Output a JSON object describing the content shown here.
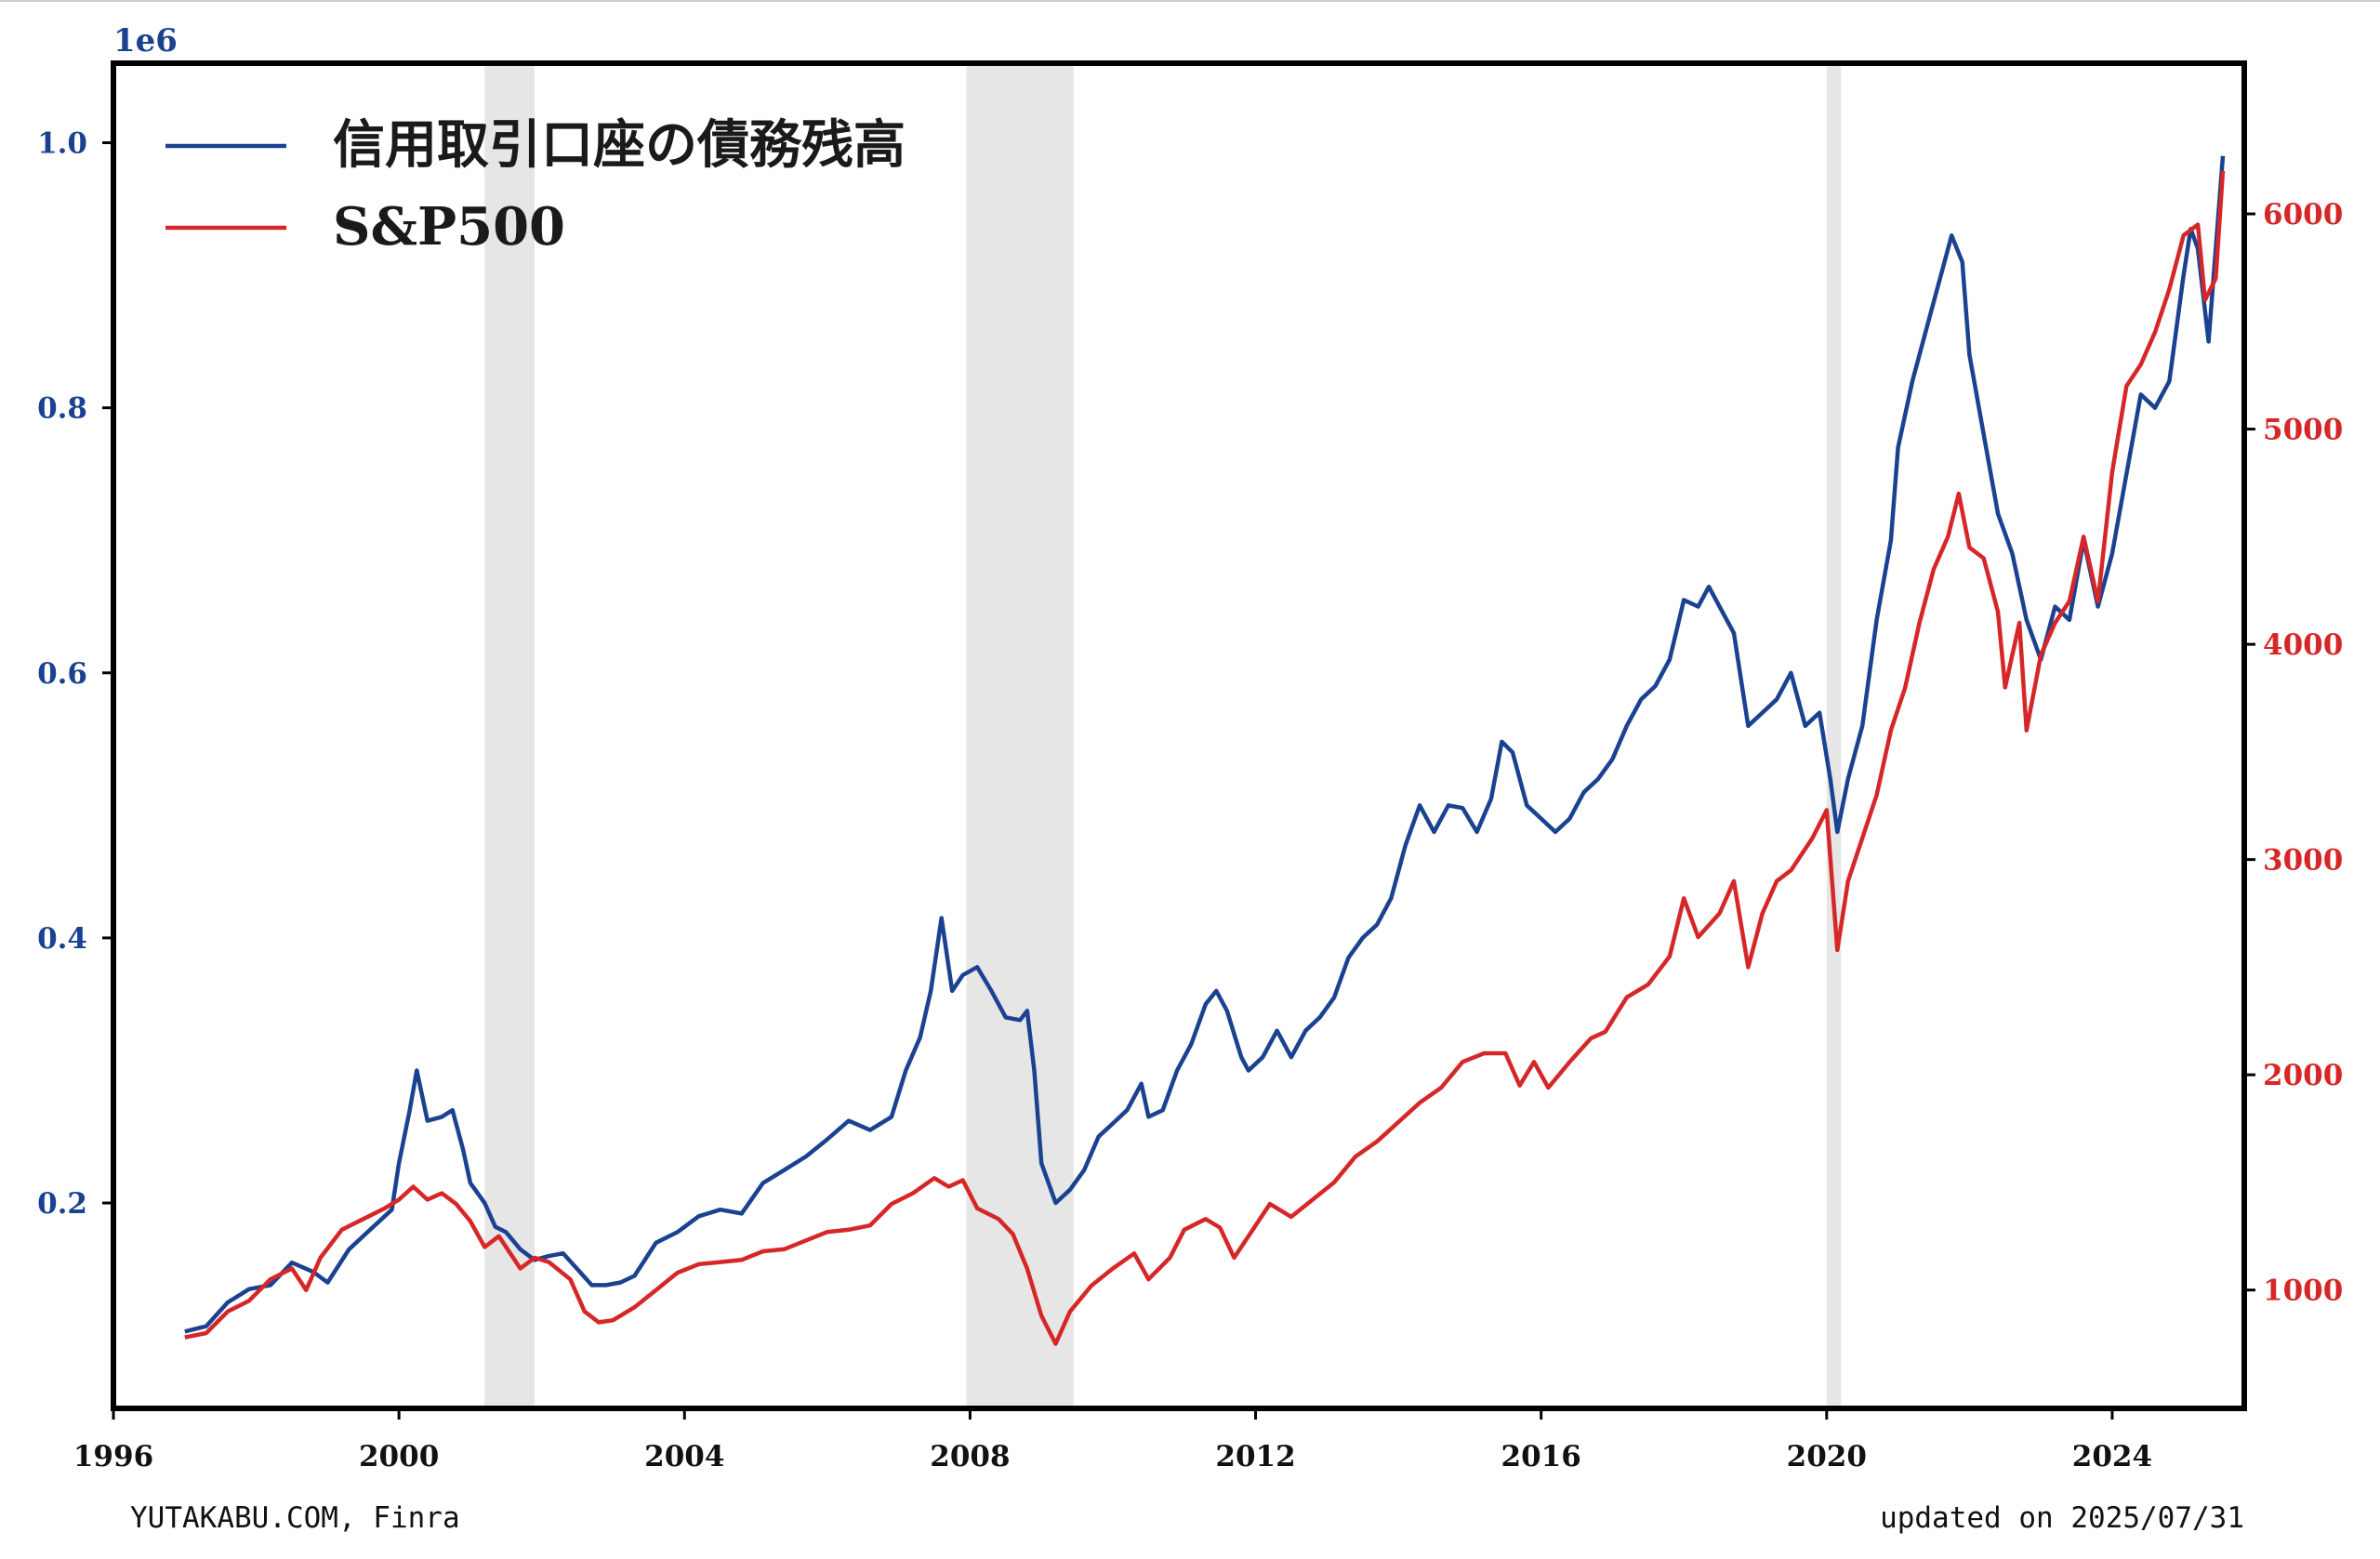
{
  "chart_data": {
    "type": "line",
    "left_axis": {
      "offset_text": "1e6",
      "ylim": [
        0.045,
        1.06
      ],
      "ticks": [
        0.2,
        0.4,
        0.6,
        0.8,
        1.0
      ],
      "tick_labels": [
        "0.2",
        "0.4",
        "0.6",
        "0.8",
        "1.0"
      ],
      "color": "#1a4291"
    },
    "right_axis": {
      "ylim": [
        450,
        6700
      ],
      "ticks": [
        1000,
        2000,
        3000,
        4000,
        5000,
        6000
      ],
      "tick_labels": [
        "1000",
        "2000",
        "3000",
        "4000",
        "5000",
        "6000"
      ],
      "color": "#d62728"
    },
    "x_axis": {
      "xlim": [
        1996.0,
        2025.85
      ],
      "ticks": [
        1996,
        2000,
        2004,
        2008,
        2012,
        2016,
        2020,
        2024
      ],
      "tick_labels": [
        "1996",
        "2000",
        "2004",
        "2008",
        "2012",
        "2016",
        "2020",
        "2024"
      ]
    },
    "recession_bands": [
      [
        2001.2,
        2001.9
      ],
      [
        2007.95,
        2009.45
      ],
      [
        2020.0,
        2020.2
      ]
    ],
    "series": [
      {
        "name": "信用取引口座の債務残高",
        "axis": "left",
        "color": "#1a4291",
        "points": [
          [
            1997.0,
            0.103
          ],
          [
            1997.3,
            0.107
          ],
          [
            1997.6,
            0.125
          ],
          [
            1997.9,
            0.135
          ],
          [
            1998.2,
            0.138
          ],
          [
            1998.5,
            0.155
          ],
          [
            1998.8,
            0.148
          ],
          [
            1999.0,
            0.14
          ],
          [
            1999.3,
            0.165
          ],
          [
            1999.6,
            0.18
          ],
          [
            1999.9,
            0.195
          ],
          [
            2000.0,
            0.23
          ],
          [
            2000.15,
            0.27
          ],
          [
            2000.25,
            0.3
          ],
          [
            2000.4,
            0.262
          ],
          [
            2000.6,
            0.265
          ],
          [
            2000.75,
            0.27
          ],
          [
            2000.9,
            0.24
          ],
          [
            2001.0,
            0.215
          ],
          [
            2001.2,
            0.2
          ],
          [
            2001.35,
            0.182
          ],
          [
            2001.5,
            0.178
          ],
          [
            2001.7,
            0.165
          ],
          [
            2001.9,
            0.157
          ],
          [
            2002.1,
            0.16
          ],
          [
            2002.3,
            0.162
          ],
          [
            2002.5,
            0.15
          ],
          [
            2002.7,
            0.138
          ],
          [
            2002.9,
            0.138
          ],
          [
            2003.1,
            0.14
          ],
          [
            2003.3,
            0.145
          ],
          [
            2003.6,
            0.17
          ],
          [
            2003.9,
            0.178
          ],
          [
            2004.2,
            0.19
          ],
          [
            2004.5,
            0.195
          ],
          [
            2004.8,
            0.192
          ],
          [
            2005.1,
            0.215
          ],
          [
            2005.4,
            0.225
          ],
          [
            2005.7,
            0.235
          ],
          [
            2006.0,
            0.248
          ],
          [
            2006.3,
            0.262
          ],
          [
            2006.6,
            0.255
          ],
          [
            2006.9,
            0.265
          ],
          [
            2007.1,
            0.3
          ],
          [
            2007.3,
            0.325
          ],
          [
            2007.45,
            0.36
          ],
          [
            2007.6,
            0.415
          ],
          [
            2007.75,
            0.36
          ],
          [
            2007.9,
            0.372
          ],
          [
            2008.1,
            0.378
          ],
          [
            2008.3,
            0.36
          ],
          [
            2008.5,
            0.34
          ],
          [
            2008.7,
            0.338
          ],
          [
            2008.8,
            0.345
          ],
          [
            2008.9,
            0.3
          ],
          [
            2009.0,
            0.23
          ],
          [
            2009.2,
            0.2
          ],
          [
            2009.4,
            0.21
          ],
          [
            2009.6,
            0.225
          ],
          [
            2009.8,
            0.25
          ],
          [
            2010.0,
            0.26
          ],
          [
            2010.2,
            0.27
          ],
          [
            2010.4,
            0.29
          ],
          [
            2010.5,
            0.265
          ],
          [
            2010.7,
            0.27
          ],
          [
            2010.9,
            0.3
          ],
          [
            2011.1,
            0.32
          ],
          [
            2011.3,
            0.35
          ],
          [
            2011.45,
            0.36
          ],
          [
            2011.6,
            0.345
          ],
          [
            2011.8,
            0.31
          ],
          [
            2011.9,
            0.3
          ],
          [
            2012.1,
            0.31
          ],
          [
            2012.3,
            0.33
          ],
          [
            2012.5,
            0.31
          ],
          [
            2012.7,
            0.33
          ],
          [
            2012.9,
            0.34
          ],
          [
            2013.1,
            0.355
          ],
          [
            2013.3,
            0.385
          ],
          [
            2013.5,
            0.4
          ],
          [
            2013.7,
            0.41
          ],
          [
            2013.9,
            0.43
          ],
          [
            2014.1,
            0.47
          ],
          [
            2014.3,
            0.5
          ],
          [
            2014.5,
            0.48
          ],
          [
            2014.7,
            0.5
          ],
          [
            2014.9,
            0.498
          ],
          [
            2015.1,
            0.48
          ],
          [
            2015.3,
            0.505
          ],
          [
            2015.45,
            0.548
          ],
          [
            2015.6,
            0.54
          ],
          [
            2015.8,
            0.5
          ],
          [
            2016.0,
            0.49
          ],
          [
            2016.2,
            0.48
          ],
          [
            2016.4,
            0.49
          ],
          [
            2016.6,
            0.51
          ],
          [
            2016.8,
            0.52
          ],
          [
            2017.0,
            0.535
          ],
          [
            2017.2,
            0.56
          ],
          [
            2017.4,
            0.58
          ],
          [
            2017.6,
            0.59
          ],
          [
            2017.8,
            0.61
          ],
          [
            2018.0,
            0.655
          ],
          [
            2018.2,
            0.65
          ],
          [
            2018.35,
            0.665
          ],
          [
            2018.5,
            0.65
          ],
          [
            2018.7,
            0.63
          ],
          [
            2018.9,
            0.56
          ],
          [
            2019.1,
            0.57
          ],
          [
            2019.3,
            0.58
          ],
          [
            2019.5,
            0.6
          ],
          [
            2019.7,
            0.56
          ],
          [
            2019.9,
            0.57
          ],
          [
            2020.05,
            0.52
          ],
          [
            2020.15,
            0.48
          ],
          [
            2020.3,
            0.52
          ],
          [
            2020.5,
            0.56
          ],
          [
            2020.7,
            0.64
          ],
          [
            2020.9,
            0.7
          ],
          [
            2021.0,
            0.77
          ],
          [
            2021.2,
            0.82
          ],
          [
            2021.4,
            0.86
          ],
          [
            2021.6,
            0.9
          ],
          [
            2021.75,
            0.93
          ],
          [
            2021.9,
            0.91
          ],
          [
            2022.0,
            0.84
          ],
          [
            2022.2,
            0.78
          ],
          [
            2022.4,
            0.72
          ],
          [
            2022.6,
            0.69
          ],
          [
            2022.8,
            0.64
          ],
          [
            2023.0,
            0.61
          ],
          [
            2023.2,
            0.65
          ],
          [
            2023.4,
            0.64
          ],
          [
            2023.6,
            0.7
          ],
          [
            2023.8,
            0.65
          ],
          [
            2024.0,
            0.69
          ],
          [
            2024.2,
            0.75
          ],
          [
            2024.4,
            0.81
          ],
          [
            2024.6,
            0.8
          ],
          [
            2024.8,
            0.82
          ],
          [
            2025.0,
            0.9
          ],
          [
            2025.1,
            0.935
          ],
          [
            2025.2,
            0.92
          ],
          [
            2025.35,
            0.85
          ],
          [
            2025.55,
            0.99
          ]
        ]
      },
      {
        "name": "S&P500",
        "axis": "right",
        "color": "#d62728",
        "points": [
          [
            1997.0,
            780
          ],
          [
            1997.3,
            800
          ],
          [
            1997.6,
            900
          ],
          [
            1997.9,
            950
          ],
          [
            1998.2,
            1050
          ],
          [
            1998.5,
            1100
          ],
          [
            1998.7,
            1000
          ],
          [
            1998.9,
            1150
          ],
          [
            1999.2,
            1280
          ],
          [
            1999.5,
            1330
          ],
          [
            1999.8,
            1380
          ],
          [
            2000.0,
            1420
          ],
          [
            2000.2,
            1480
          ],
          [
            2000.4,
            1420
          ],
          [
            2000.6,
            1450
          ],
          [
            2000.8,
            1400
          ],
          [
            2001.0,
            1320
          ],
          [
            2001.2,
            1200
          ],
          [
            2001.4,
            1250
          ],
          [
            2001.7,
            1100
          ],
          [
            2001.9,
            1150
          ],
          [
            2002.1,
            1130
          ],
          [
            2002.4,
            1050
          ],
          [
            2002.6,
            900
          ],
          [
            2002.8,
            850
          ],
          [
            2003.0,
            860
          ],
          [
            2003.3,
            920
          ],
          [
            2003.6,
            1000
          ],
          [
            2003.9,
            1080
          ],
          [
            2004.2,
            1120
          ],
          [
            2004.5,
            1130
          ],
          [
            2004.8,
            1140
          ],
          [
            2005.1,
            1180
          ],
          [
            2005.4,
            1190
          ],
          [
            2005.7,
            1230
          ],
          [
            2006.0,
            1270
          ],
          [
            2006.3,
            1280
          ],
          [
            2006.6,
            1300
          ],
          [
            2006.9,
            1400
          ],
          [
            2007.2,
            1450
          ],
          [
            2007.5,
            1520
          ],
          [
            2007.7,
            1480
          ],
          [
            2007.9,
            1510
          ],
          [
            2008.1,
            1380
          ],
          [
            2008.4,
            1330
          ],
          [
            2008.6,
            1260
          ],
          [
            2008.8,
            1100
          ],
          [
            2009.0,
            880
          ],
          [
            2009.2,
            750
          ],
          [
            2009.4,
            900
          ],
          [
            2009.7,
            1020
          ],
          [
            2010.0,
            1100
          ],
          [
            2010.3,
            1170
          ],
          [
            2010.5,
            1050
          ],
          [
            2010.8,
            1150
          ],
          [
            2011.0,
            1280
          ],
          [
            2011.3,
            1330
          ],
          [
            2011.5,
            1290
          ],
          [
            2011.7,
            1150
          ],
          [
            2011.9,
            1250
          ],
          [
            2012.2,
            1400
          ],
          [
            2012.5,
            1340
          ],
          [
            2012.8,
            1420
          ],
          [
            2013.1,
            1500
          ],
          [
            2013.4,
            1620
          ],
          [
            2013.7,
            1690
          ],
          [
            2014.0,
            1780
          ],
          [
            2014.3,
            1870
          ],
          [
            2014.6,
            1940
          ],
          [
            2014.9,
            2060
          ],
          [
            2015.2,
            2100
          ],
          [
            2015.5,
            2100
          ],
          [
            2015.7,
            1950
          ],
          [
            2015.9,
            2060
          ],
          [
            2016.1,
            1940
          ],
          [
            2016.4,
            2060
          ],
          [
            2016.7,
            2170
          ],
          [
            2016.9,
            2200
          ],
          [
            2017.2,
            2360
          ],
          [
            2017.5,
            2420
          ],
          [
            2017.8,
            2550
          ],
          [
            2018.0,
            2820
          ],
          [
            2018.2,
            2640
          ],
          [
            2018.5,
            2750
          ],
          [
            2018.7,
            2900
          ],
          [
            2018.9,
            2500
          ],
          [
            2019.1,
            2750
          ],
          [
            2019.3,
            2900
          ],
          [
            2019.5,
            2950
          ],
          [
            2019.8,
            3100
          ],
          [
            2020.0,
            3230
          ],
          [
            2020.15,
            2580
          ],
          [
            2020.3,
            2900
          ],
          [
            2020.5,
            3100
          ],
          [
            2020.7,
            3300
          ],
          [
            2020.9,
            3600
          ],
          [
            2021.1,
            3800
          ],
          [
            2021.3,
            4100
          ],
          [
            2021.5,
            4350
          ],
          [
            2021.7,
            4500
          ],
          [
            2021.85,
            4700
          ],
          [
            2022.0,
            4450
          ],
          [
            2022.2,
            4400
          ],
          [
            2022.4,
            4150
          ],
          [
            2022.5,
            3800
          ],
          [
            2022.7,
            4100
          ],
          [
            2022.8,
            3600
          ],
          [
            2023.0,
            3950
          ],
          [
            2023.2,
            4100
          ],
          [
            2023.4,
            4200
          ],
          [
            2023.6,
            4500
          ],
          [
            2023.8,
            4200
          ],
          [
            2024.0,
            4800
          ],
          [
            2024.2,
            5200
          ],
          [
            2024.4,
            5300
          ],
          [
            2024.6,
            5450
          ],
          [
            2024.8,
            5650
          ],
          [
            2025.0,
            5900
          ],
          [
            2025.2,
            5950
          ],
          [
            2025.3,
            5600
          ],
          [
            2025.45,
            5700
          ],
          [
            2025.55,
            6200
          ]
        ]
      }
    ],
    "legend": {
      "placement": "top-left",
      "entries": [
        {
          "label": "信用取引口座の債務残高",
          "color": "#1a4291"
        },
        {
          "label": "S&P500",
          "color": "#d62728"
        }
      ]
    }
  },
  "footer": {
    "source": "YUTAKABU.COM, Finra",
    "updated": "updated on 2025/07/31"
  }
}
